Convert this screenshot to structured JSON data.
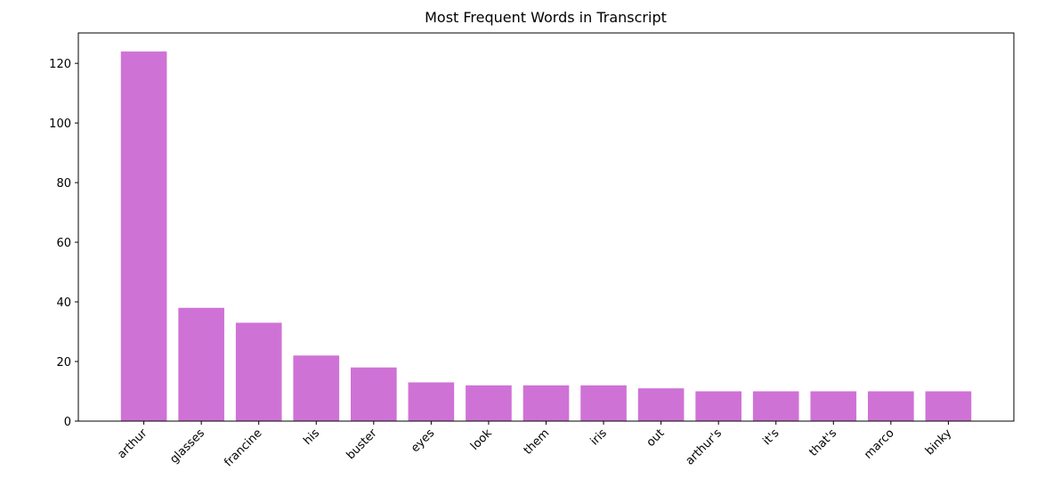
{
  "chart_data": {
    "type": "bar",
    "title": "Most Frequent Words in Transcript",
    "categories": [
      "arthur",
      "glasses",
      "francine",
      "his",
      "buster",
      "eyes",
      "look",
      "them",
      "iris",
      "out",
      "arthur's",
      "it's",
      "that's",
      "marco",
      "binky"
    ],
    "values": [
      124,
      38,
      33,
      22,
      18,
      13,
      12,
      12,
      12,
      11,
      10,
      10,
      10,
      10,
      10
    ],
    "color": "#cf72d6",
    "ylim": [
      0,
      130.2
    ],
    "yticks": [
      0,
      20,
      40,
      60,
      80,
      100,
      120
    ]
  }
}
